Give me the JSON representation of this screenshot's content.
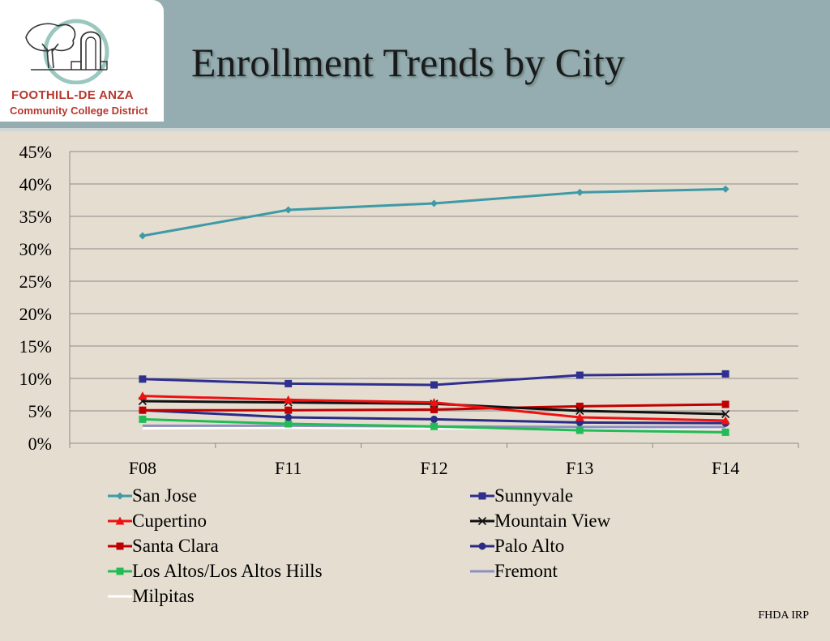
{
  "header": {
    "logo": {
      "line1": "FOOTHILL-DE ANZA",
      "line2": "Community College District"
    },
    "title": "Enrollment Trends by City"
  },
  "footer": {
    "note": "FHDA IRP"
  },
  "chart_data": {
    "type": "line",
    "title": "Enrollment Trends by City",
    "xlabel": "",
    "ylabel": "",
    "categories": [
      "F08",
      "F11",
      "F12",
      "F13",
      "F14"
    ],
    "ylim": [
      0,
      45
    ],
    "yticks": [
      0,
      5,
      10,
      15,
      20,
      25,
      30,
      35,
      40,
      45
    ],
    "ytick_labels": [
      "0%",
      "5%",
      "10%",
      "15%",
      "20%",
      "25%",
      "30%",
      "35%",
      "40%",
      "45%"
    ],
    "grid": true,
    "legend_placement": "bottom",
    "series": [
      {
        "name": "San Jose",
        "values": [
          32.0,
          36.0,
          37.0,
          38.7,
          39.2
        ],
        "color": "#3e9aa6",
        "marker": "diamond"
      },
      {
        "name": "Sunnyvale",
        "values": [
          9.9,
          9.2,
          9.0,
          10.5,
          10.7
        ],
        "color": "#2f2f8f",
        "marker": "square"
      },
      {
        "name": "Cupertino",
        "values": [
          7.3,
          6.7,
          6.3,
          4.0,
          3.5
        ],
        "color": "#ee1111",
        "marker": "triangle"
      },
      {
        "name": "Mountain View",
        "values": [
          6.5,
          6.3,
          6.1,
          5.0,
          4.5
        ],
        "color": "#111111",
        "marker": "x"
      },
      {
        "name": "Santa Clara",
        "values": [
          5.1,
          5.1,
          5.2,
          5.7,
          6.0
        ],
        "color": "#c00000",
        "marker": "square"
      },
      {
        "name": "Palo Alto",
        "values": [
          5.1,
          4.0,
          3.7,
          3.2,
          3.1
        ],
        "color": "#2b2b85",
        "marker": "circle"
      },
      {
        "name": "Los Altos/Los Altos Hills",
        "values": [
          3.7,
          3.0,
          2.6,
          2.0,
          1.7
        ],
        "color": "#22bb55",
        "marker": "square"
      },
      {
        "name": "Fremont",
        "values": [
          2.7,
          2.7,
          2.6,
          2.5,
          2.5
        ],
        "color": "#8c8fbf",
        "marker": "none"
      },
      {
        "name": "Milpitas",
        "values": [
          2.3,
          2.4,
          2.3,
          2.3,
          2.3
        ],
        "color": "#ffffff",
        "marker": "none"
      }
    ]
  }
}
